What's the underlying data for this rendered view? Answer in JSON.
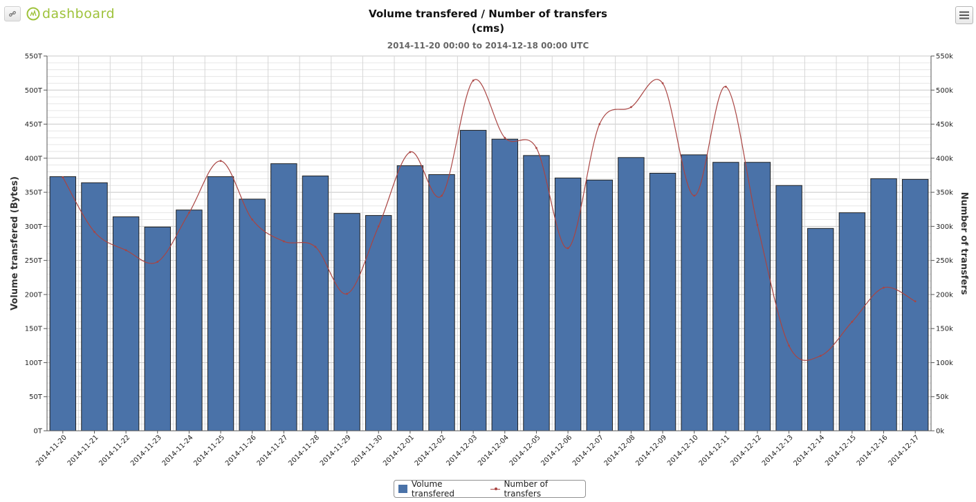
{
  "toolbar": {
    "logo_text": "dashboard"
  },
  "header": {
    "title_line1": "Volume transfered / Number of transfers",
    "title_line2": "(cms)",
    "subtitle": "2014-11-20 00:00 to 2014-12-18 00:00 UTC"
  },
  "colors": {
    "bar": "#4a72a8",
    "bar_border": "#222222",
    "line": "#a94442"
  },
  "legend": {
    "bars": "Volume transfered",
    "line": "Number of transfers"
  },
  "chart_data": {
    "type": "bar",
    "title": "Volume transfered / Number of transfers",
    "subtitle": "2014-11-20 00:00 to 2014-12-18 00:00 UTC",
    "categories": [
      "2014-11-20",
      "2014-11-21",
      "2014-11-22",
      "2014-11-23",
      "2014-11-24",
      "2014-11-25",
      "2014-11-26",
      "2014-11-27",
      "2014-11-28",
      "2014-11-29",
      "2014-11-30",
      "2014-12-01",
      "2014-12-02",
      "2014-12-03",
      "2014-12-04",
      "2014-12-05",
      "2014-12-06",
      "2014-12-07",
      "2014-12-08",
      "2014-12-09",
      "2014-12-10",
      "2014-12-11",
      "2014-12-12",
      "2014-12-13",
      "2014-12-14",
      "2014-12-15",
      "2014-12-16",
      "2014-12-17"
    ],
    "series": [
      {
        "name": "Volume transfered",
        "type": "bar",
        "axis": "left",
        "values": [
          373,
          364,
          314,
          299,
          324,
          373,
          340,
          392,
          374,
          319,
          316,
          389,
          376,
          441,
          428,
          404,
          371,
          368,
          401,
          378,
          405,
          394,
          394,
          360,
          297,
          320,
          370,
          369
        ]
      },
      {
        "name": "Number of transfers",
        "type": "line",
        "axis": "right",
        "values": [
          372000,
          292000,
          265000,
          248000,
          320000,
          396000,
          310000,
          278000,
          270000,
          201000,
          300000,
          409000,
          345000,
          514000,
          430000,
          415000,
          268000,
          450000,
          475000,
          510000,
          345000,
          505000,
          302000,
          125000,
          110000,
          160000,
          210000,
          190000
        ]
      }
    ],
    "ylabel": "Volume transfered (Bytes)",
    "ylabel_right": "Number of transfers",
    "ylim": [
      0,
      550
    ],
    "ylim_right": [
      0,
      550000
    ],
    "yticks": [
      "0T",
      "50T",
      "100T",
      "150T",
      "200T",
      "250T",
      "300T",
      "350T",
      "400T",
      "450T",
      "500T",
      "550T"
    ],
    "yticks_right": [
      "0k",
      "50k",
      "100k",
      "150k",
      "200k",
      "250k",
      "300k",
      "350k",
      "400k",
      "450k",
      "500k",
      "550k"
    ],
    "grid": true,
    "legend_position": "bottom-center"
  }
}
